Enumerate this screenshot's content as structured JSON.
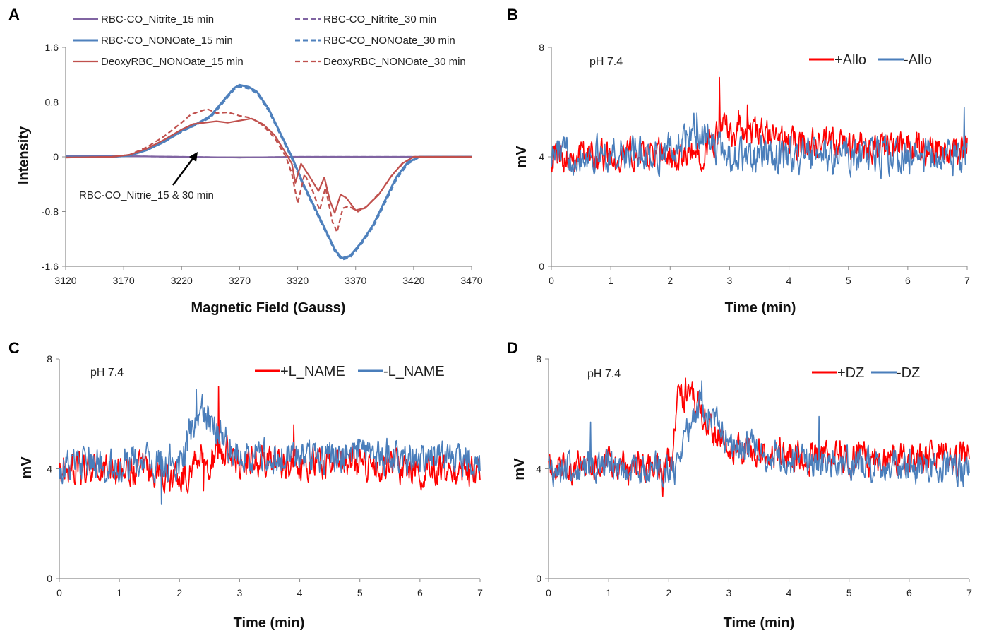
{
  "colors": {
    "purple": "#8064a2",
    "blue": "#4f81bd",
    "brown": "#c0504d",
    "red": "#ff0000",
    "steel": "#4a7ebb",
    "axis": "#8c8c8c"
  },
  "chart_data": [
    {
      "panel": "A",
      "type": "line",
      "title": "",
      "xlabel": "Magnetic Field (Gauss)",
      "ylabel": "Intensity",
      "xlim": [
        3120,
        3470
      ],
      "ylim": [
        -1.6,
        1.6
      ],
      "xticks": [
        "3120",
        "3170",
        "3220",
        "3270",
        "3320",
        "3370",
        "3420",
        "3470"
      ],
      "yticks": [
        "1.6",
        "0.8",
        "0",
        "-0.8",
        "-1.6"
      ],
      "annotation": "RBC-CO_Nitrie_15  & 30 min",
      "legend_position": "top",
      "series": [
        {
          "name": "RBC-CO_Nitrite_15 min",
          "color": "#8064a2",
          "dash": false,
          "points": [
            [
              3120,
              0.02
            ],
            [
              3170,
              0.01
            ],
            [
              3220,
              0.0
            ],
            [
              3270,
              -0.01
            ],
            [
              3320,
              0.0
            ],
            [
              3370,
              0.0
            ],
            [
              3420,
              0.0
            ],
            [
              3470,
              0.0
            ]
          ]
        },
        {
          "name": "RBC-CO_Nitrite_30 min",
          "color": "#8064a2",
          "dash": true,
          "points": [
            [
              3120,
              0.02
            ],
            [
              3170,
              0.01
            ],
            [
              3220,
              0.0
            ],
            [
              3270,
              -0.01
            ],
            [
              3320,
              0.0
            ],
            [
              3370,
              0.0
            ],
            [
              3420,
              0.0
            ],
            [
              3470,
              0.0
            ]
          ]
        },
        {
          "name": "RBC-CO_NONOate_15 min",
          "color": "#4f81bd",
          "dash": false,
          "points": [
            [
              3120,
              0.0
            ],
            [
              3160,
              0.0
            ],
            [
              3175,
              0.02
            ],
            [
              3190,
              0.1
            ],
            [
              3205,
              0.22
            ],
            [
              3220,
              0.38
            ],
            [
              3235,
              0.5
            ],
            [
              3245,
              0.6
            ],
            [
              3255,
              0.8
            ],
            [
              3265,
              1.0
            ],
            [
              3270,
              1.05
            ],
            [
              3278,
              1.02
            ],
            [
              3285,
              0.95
            ],
            [
              3295,
              0.7
            ],
            [
              3305,
              0.35
            ],
            [
              3315,
              0.0
            ],
            [
              3325,
              -0.4
            ],
            [
              3335,
              -0.75
            ],
            [
              3345,
              -1.1
            ],
            [
              3352,
              -1.35
            ],
            [
              3358,
              -1.48
            ],
            [
              3365,
              -1.45
            ],
            [
              3375,
              -1.25
            ],
            [
              3385,
              -1.0
            ],
            [
              3395,
              -0.65
            ],
            [
              3405,
              -0.3
            ],
            [
              3415,
              -0.08
            ],
            [
              3425,
              0.0
            ],
            [
              3470,
              0.0
            ]
          ]
        },
        {
          "name": "RBC-CO_NONOate_30 min",
          "color": "#4f81bd",
          "dash": true,
          "points": [
            [
              3120,
              0.0
            ],
            [
              3160,
              0.0
            ],
            [
              3175,
              0.02
            ],
            [
              3190,
              0.1
            ],
            [
              3205,
              0.22
            ],
            [
              3220,
              0.37
            ],
            [
              3235,
              0.49
            ],
            [
              3245,
              0.58
            ],
            [
              3255,
              0.78
            ],
            [
              3265,
              0.98
            ],
            [
              3270,
              1.03
            ],
            [
              3278,
              1.0
            ],
            [
              3285,
              0.93
            ],
            [
              3295,
              0.68
            ],
            [
              3305,
              0.33
            ],
            [
              3315,
              -0.02
            ],
            [
              3325,
              -0.42
            ],
            [
              3335,
              -0.77
            ],
            [
              3345,
              -1.12
            ],
            [
              3352,
              -1.37
            ],
            [
              3358,
              -1.5
            ],
            [
              3365,
              -1.47
            ],
            [
              3375,
              -1.27
            ],
            [
              3385,
              -1.02
            ],
            [
              3395,
              -0.68
            ],
            [
              3405,
              -0.33
            ],
            [
              3415,
              -0.1
            ],
            [
              3425,
              0.0
            ],
            [
              3470,
              0.0
            ]
          ]
        },
        {
          "name": "DeoxyRBC_NONOate_15 min",
          "color": "#c0504d",
          "dash": false,
          "points": [
            [
              3120,
              -0.01
            ],
            [
              3160,
              0.0
            ],
            [
              3175,
              0.03
            ],
            [
              3190,
              0.12
            ],
            [
              3205,
              0.25
            ],
            [
              3220,
              0.4
            ],
            [
              3230,
              0.48
            ],
            [
              3240,
              0.5
            ],
            [
              3250,
              0.52
            ],
            [
              3260,
              0.5
            ],
            [
              3270,
              0.53
            ],
            [
              3280,
              0.56
            ],
            [
              3290,
              0.48
            ],
            [
              3300,
              0.32
            ],
            [
              3310,
              0.05
            ],
            [
              3315,
              -0.1
            ],
            [
              3318,
              -0.38
            ],
            [
              3323,
              -0.1
            ],
            [
              3330,
              -0.28
            ],
            [
              3338,
              -0.5
            ],
            [
              3343,
              -0.3
            ],
            [
              3348,
              -0.65
            ],
            [
              3352,
              -0.82
            ],
            [
              3357,
              -0.55
            ],
            [
              3362,
              -0.6
            ],
            [
              3370,
              -0.78
            ],
            [
              3378,
              -0.75
            ],
            [
              3390,
              -0.55
            ],
            [
              3400,
              -0.3
            ],
            [
              3410,
              -0.1
            ],
            [
              3420,
              0.0
            ],
            [
              3470,
              0.0
            ]
          ]
        },
        {
          "name": "DeoxyRBC_NONOate_30 min",
          "color": "#c0504d",
          "dash": true,
          "points": [
            [
              3120,
              -0.01
            ],
            [
              3160,
              0.0
            ],
            [
              3175,
              0.03
            ],
            [
              3190,
              0.14
            ],
            [
              3205,
              0.3
            ],
            [
              3220,
              0.5
            ],
            [
              3228,
              0.62
            ],
            [
              3235,
              0.66
            ],
            [
              3242,
              0.7
            ],
            [
              3250,
              0.64
            ],
            [
              3260,
              0.65
            ],
            [
              3270,
              0.6
            ],
            [
              3280,
              0.57
            ],
            [
              3290,
              0.46
            ],
            [
              3300,
              0.28
            ],
            [
              3310,
              0.0
            ],
            [
              3315,
              -0.25
            ],
            [
              3320,
              -0.68
            ],
            [
              3326,
              -0.25
            ],
            [
              3333,
              -0.5
            ],
            [
              3339,
              -0.78
            ],
            [
              3344,
              -0.45
            ],
            [
              3350,
              -0.95
            ],
            [
              3354,
              -1.1
            ],
            [
              3359,
              -0.75
            ],
            [
              3364,
              -0.72
            ],
            [
              3372,
              -0.8
            ],
            [
              3380,
              -0.72
            ],
            [
              3392,
              -0.5
            ],
            [
              3402,
              -0.25
            ],
            [
              3412,
              -0.08
            ],
            [
              3420,
              0.0
            ],
            [
              3470,
              0.0
            ]
          ]
        }
      ]
    },
    {
      "panel": "B",
      "type": "line",
      "title": "",
      "xlabel": "Time (min)",
      "ylabel": "mV",
      "xlim": [
        0,
        7
      ],
      "ylim": [
        0,
        8
      ],
      "xticks": [
        "0",
        "1",
        "2",
        "3",
        "4",
        "5",
        "6",
        "7"
      ],
      "yticks": [
        "8",
        "4",
        "0"
      ],
      "annotation": "pH 7.4",
      "legend_position": "top-right",
      "series": [
        {
          "name": "+Allo",
          "color": "#ff0000",
          "noise": 0.55,
          "points": [
            [
              0,
              4.1
            ],
            [
              1.9,
              4.05
            ],
            [
              2.2,
              3.9
            ],
            [
              2.5,
              4.2
            ],
            [
              2.75,
              4.6
            ],
            [
              2.85,
              5.0
            ],
            [
              3.2,
              4.9
            ],
            [
              3.6,
              4.8
            ],
            [
              4,
              4.5
            ],
            [
              5,
              4.4
            ],
            [
              6,
              4.35
            ],
            [
              7,
              4.3
            ]
          ],
          "spikes": [
            [
              2.83,
              6.9
            ],
            [
              3.3,
              5.9
            ],
            [
              3.15,
              5.7
            ]
          ]
        },
        {
          "name": "-Allo",
          "color": "#4a7ebb",
          "noise": 0.6,
          "points": [
            [
              0,
              4.1
            ],
            [
              1.9,
              4.1
            ],
            [
              2.2,
              4.5
            ],
            [
              2.4,
              4.9
            ],
            [
              2.6,
              4.8
            ],
            [
              2.8,
              4.2
            ],
            [
              3.2,
              4.0
            ],
            [
              5,
              4.05
            ],
            [
              7,
              4.0
            ]
          ],
          "spikes": [
            [
              6.95,
              5.8
            ],
            [
              2.45,
              5.6
            ]
          ]
        }
      ]
    },
    {
      "panel": "C",
      "type": "line",
      "title": "",
      "xlabel": "Time (min)",
      "ylabel": "mV",
      "xlim": [
        0,
        7
      ],
      "ylim": [
        0,
        8
      ],
      "xticks": [
        "0",
        "1",
        "2",
        "3",
        "4",
        "5",
        "6",
        "7"
      ],
      "yticks": [
        "8",
        "4",
        "0"
      ],
      "annotation": "pH 7.4",
      "legend_position": "top-right",
      "series": [
        {
          "name": "+L_NAME",
          "color": "#ff0000",
          "noise": 0.55,
          "points": [
            [
              0,
              4.0
            ],
            [
              1.5,
              3.9
            ],
            [
              2.1,
              3.7
            ],
            [
              2.3,
              4.5
            ],
            [
              2.5,
              4.3
            ],
            [
              2.7,
              4.6
            ],
            [
              3,
              4.3
            ],
            [
              4,
              4.2
            ],
            [
              5,
              4.2
            ],
            [
              6,
              4.0
            ],
            [
              7,
              3.9
            ]
          ],
          "spikes": [
            [
              2.65,
              7.0
            ],
            [
              3.9,
              5.6
            ],
            [
              2.4,
              3.2
            ]
          ]
        },
        {
          "name": "-L_NAME",
          "color": "#4a7ebb",
          "noise": 0.6,
          "points": [
            [
              0,
              4.1
            ],
            [
              2.0,
              4.2
            ],
            [
              2.2,
              5.3
            ],
            [
              2.35,
              6.0
            ],
            [
              2.6,
              5.5
            ],
            [
              2.8,
              4.8
            ],
            [
              3.2,
              4.4
            ],
            [
              4.5,
              4.5
            ],
            [
              6,
              4.4
            ],
            [
              7,
              4.4
            ]
          ],
          "spikes": [
            [
              2.28,
              6.9
            ],
            [
              1.7,
              2.7
            ]
          ]
        }
      ]
    },
    {
      "panel": "D",
      "type": "line",
      "title": "",
      "xlabel": "Time (min)",
      "ylabel": "mV",
      "xlim": [
        0,
        7
      ],
      "ylim": [
        0,
        8
      ],
      "xticks": [
        "0",
        "1",
        "2",
        "3",
        "4",
        "5",
        "6",
        "7"
      ],
      "yticks": [
        "8",
        "4",
        "0"
      ],
      "annotation": "pH 7.4",
      "legend_position": "top-right",
      "series": [
        {
          "name": "+DZ",
          "color": "#ff0000",
          "noise": 0.55,
          "points": [
            [
              0,
              4.0
            ],
            [
              1.9,
              4.1
            ],
            [
              2.05,
              4.3
            ],
            [
              2.15,
              6.3
            ],
            [
              2.3,
              6.8
            ],
            [
              2.5,
              6.2
            ],
            [
              2.8,
              5.2
            ],
            [
              3.2,
              4.7
            ],
            [
              4,
              4.5
            ],
            [
              5,
              4.4
            ],
            [
              6,
              4.4
            ],
            [
              7,
              4.4
            ]
          ],
          "spikes": [
            [
              2.28,
              7.3
            ],
            [
              1.9,
              3.0
            ]
          ]
        },
        {
          "name": "-DZ",
          "color": "#4a7ebb",
          "noise": 0.55,
          "points": [
            [
              0,
              4.0
            ],
            [
              2.1,
              4.0
            ],
            [
              2.3,
              5.5
            ],
            [
              2.5,
              6.4
            ],
            [
              2.7,
              6.0
            ],
            [
              3.0,
              5.0
            ],
            [
              3.5,
              4.6
            ],
            [
              4.5,
              4.2
            ],
            [
              5.5,
              4.1
            ],
            [
              7,
              4.0
            ]
          ],
          "spikes": [
            [
              2.55,
              7.2
            ],
            [
              4.5,
              5.9
            ],
            [
              0.7,
              5.7
            ]
          ]
        }
      ]
    }
  ]
}
